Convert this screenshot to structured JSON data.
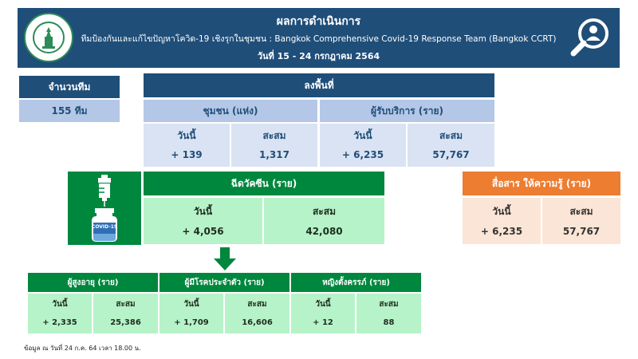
{
  "header": {
    "title": "ผลการดำเนินการ",
    "subtitle": "ทีมป้องกันและแก้ไขปัญหาโควิด-19 เชิงรุกในชุมชน : Bangkok Comprehensive Covid-19 Response Team (Bangkok CCRT)",
    "date_range": "วันที่ 15 - 24 กรกฎาคม 2564"
  },
  "teams": {
    "label": "จำนวนทีม",
    "value": "155 ทีม"
  },
  "field": {
    "title": "ลงพื้นที่",
    "community": {
      "label": "ชุมชน (แห่ง)",
      "today_label": "วันนี้",
      "total_label": "สะสม",
      "today": "+ 139",
      "total": "1,317"
    },
    "clients": {
      "label": "ผู้รับบริการ (ราย)",
      "today_label": "วันนี้",
      "total_label": "สะสม",
      "today": "+ 6,235",
      "total": "57,767"
    }
  },
  "vaccine": {
    "title": "ฉีดวัคซีน (ราย)",
    "today_label": "วันนี้",
    "total_label": "สะสม",
    "today": "+ 4,056",
    "total": "42,080",
    "icon_text": "COVID-19"
  },
  "education": {
    "title": "สื่อสาร ให้ความรู้ (ราย)",
    "today_label": "วันนี้",
    "total_label": "สะสม",
    "today": "+ 6,235",
    "total": "57,767"
  },
  "groups": [
    {
      "title": "ผู้สูงอายุ (ราย)",
      "today_label": "วันนี้",
      "total_label": "สะสม",
      "today": "+ 2,335",
      "total": "25,386"
    },
    {
      "title": "ผู้มีโรคประจำตัว (ราย)",
      "today_label": "วันนี้",
      "total_label": "สะสม",
      "today": "+ 1,709",
      "total": "16,606"
    },
    {
      "title": "หญิงตั้งครรภ์ (ราย)",
      "today_label": "วันนี้",
      "total_label": "สะสม",
      "today": "+ 12",
      "total": "88"
    }
  ],
  "footnote": "ข้อมูล ณ วันที่ 24 ก.ค. 64 เวลา 18.00 น.",
  "colors": {
    "navy": "#1f4e79",
    "green": "#00873e",
    "orange": "#ed7d31"
  }
}
